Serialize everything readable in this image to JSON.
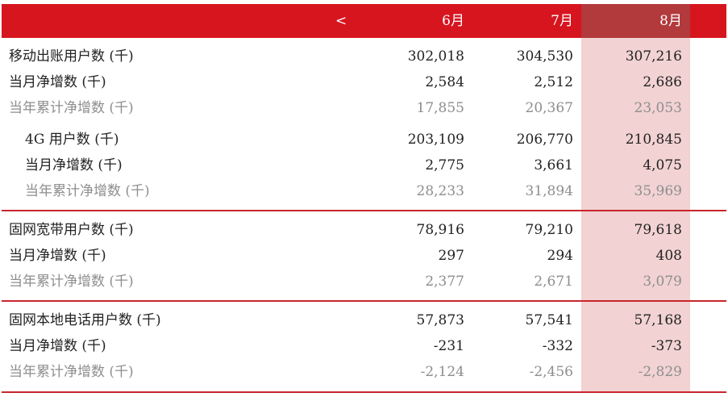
{
  "header": {
    "prev_label": "<",
    "months": [
      "6月",
      "7月",
      "8月"
    ]
  },
  "rows": [
    {
      "label": "移动出账用户数 (千)",
      "values": [
        "302,018",
        "304,530",
        "307,216"
      ]
    },
    {
      "label": "当月净增数 (千)",
      "values": [
        "2,584",
        "2,512",
        "2,686"
      ]
    },
    {
      "label": "当年累计净增数 (千)",
      "values": [
        "17,855",
        "20,367",
        "23,053"
      ]
    },
    {
      "label": "4G 用户数 (千)",
      "values": [
        "203,109",
        "206,770",
        "210,845"
      ]
    },
    {
      "label": "当月净增数 (千)",
      "values": [
        "2,775",
        "3,661",
        "4,075"
      ]
    },
    {
      "label": "当年累计净增数 (千)",
      "values": [
        "28,233",
        "31,894",
        "35,969"
      ]
    },
    {
      "label": "固网宽带用户数 (千)",
      "values": [
        "78,916",
        "79,210",
        "79,618"
      ]
    },
    {
      "label": "当月净增数 (千)",
      "values": [
        "297",
        "294",
        "408"
      ]
    },
    {
      "label": "当年累计净增数 (千)",
      "values": [
        "2,377",
        "2,671",
        "3,079"
      ]
    },
    {
      "label": "固网本地电话用户数 (千)",
      "values": [
        "57,873",
        "57,541",
        "57,168"
      ]
    },
    {
      "label": "当月净增数 (千)",
      "values": [
        "-231",
        "-332",
        "-373"
      ]
    },
    {
      "label": "当年累计净增数 (千)",
      "values": [
        "-2,124",
        "-2,456",
        "-2,829"
      ]
    }
  ],
  "colors": {
    "header_bg": "#d7151f",
    "highlight_header": "#b2393c",
    "highlight_column": "#f2d2d2",
    "muted_text": "#8e8e8e",
    "rule": "#c8262c"
  }
}
